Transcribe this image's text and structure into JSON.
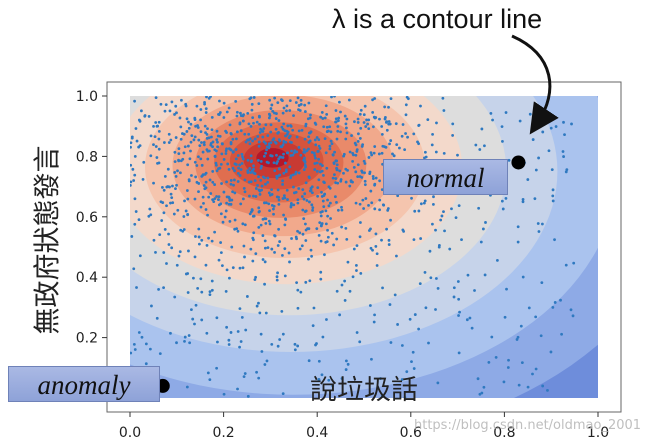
{
  "chart_data": {
    "type": "scatter",
    "title": "",
    "xlabel": "",
    "ylabel": "無政府狀態發言",
    "xlim": [
      0,
      1
    ],
    "ylim": [
      0,
      1
    ],
    "x_ticks": [
      "0.0",
      "0.2",
      "0.4",
      "0.6",
      "0.8",
      "1.0"
    ],
    "y_ticks": [
      "0.2",
      "0.4",
      "0.6",
      "0.8",
      "1.0"
    ],
    "grid": false,
    "background": "filled density contours with scattered points",
    "contour_center": {
      "x": 0.3,
      "y": 0.8
    },
    "contour_levels": 11,
    "contour_colors": [
      "#b2182b",
      "#c83a33",
      "#d6543d",
      "#e06e4f",
      "#e98a6a",
      "#f1a98c",
      "#f5c5ae",
      "#f3d9cb",
      "#dddddd",
      "#c6d3ea",
      "#aac3ee",
      "#8eaae6",
      "#6e8ddb"
    ],
    "scatter_color": "#2f79c0",
    "series": [
      {
        "label": "normal",
        "x": 0.83,
        "y": 0.78
      },
      {
        "label": "anomaly",
        "x": 0.07,
        "y": 0.04
      }
    ],
    "annotations": {
      "contour_note": "λ is a contour line",
      "bottom_label": "說垃圾話"
    }
  },
  "watermark": "https://blog.csdn.net/oldmao_2001"
}
